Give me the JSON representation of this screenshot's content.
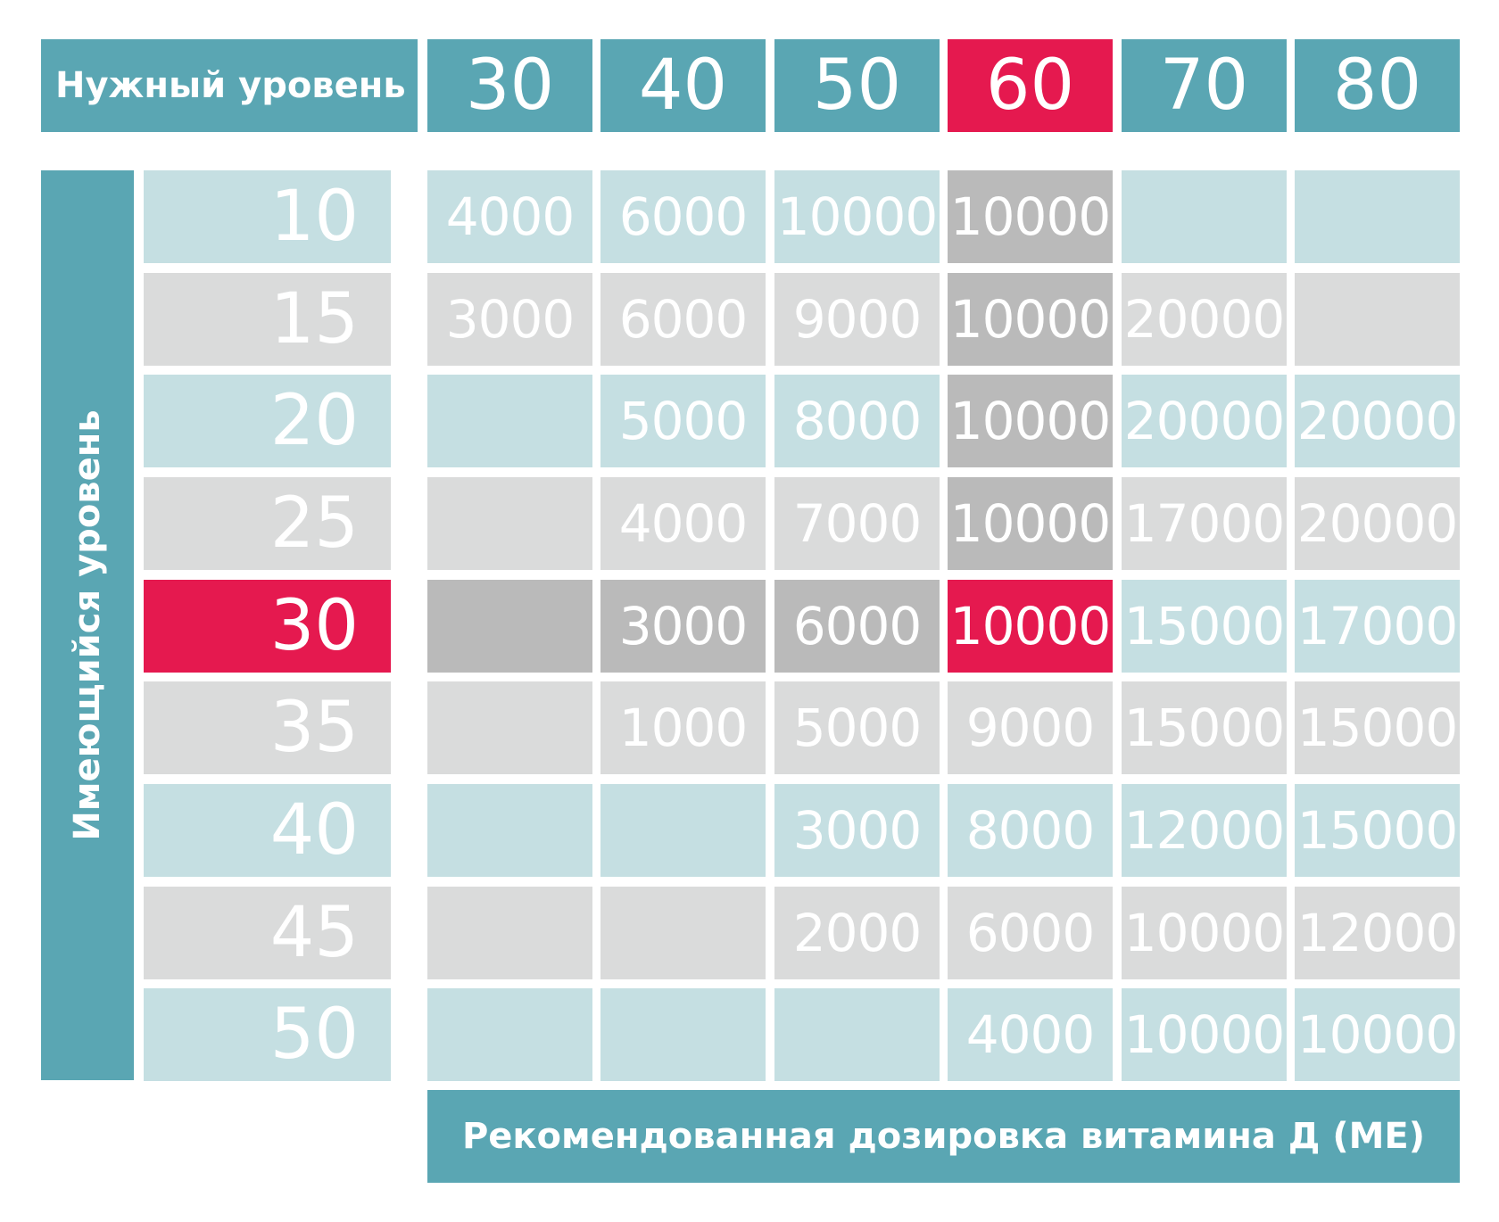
{
  "chart_data": {
    "type": "table",
    "header_label": "Нужный уровень",
    "row_axis_label": "Имеющийся уровень",
    "footer_label": "Рекомендованная дозировка витамина Д (МЕ)",
    "columns": [
      "30",
      "40",
      "50",
      "60",
      "70",
      "80"
    ],
    "rows": [
      "10",
      "15",
      "20",
      "25",
      "30",
      "35",
      "40",
      "45",
      "50"
    ],
    "cells": [
      [
        "4000",
        "6000",
        "10000",
        "10000",
        "",
        ""
      ],
      [
        "3000",
        "6000",
        "9000",
        "10000",
        "20000",
        ""
      ],
      [
        "",
        "5000",
        "8000",
        "10000",
        "20000",
        "20000"
      ],
      [
        "",
        "4000",
        "7000",
        "10000",
        "17000",
        "20000"
      ],
      [
        "",
        "3000",
        "6000",
        "10000",
        "15000",
        "17000"
      ],
      [
        "",
        "1000",
        "5000",
        "9000",
        "15000",
        "15000"
      ],
      [
        "",
        "",
        "3000",
        "8000",
        "12000",
        "15000"
      ],
      [
        "",
        "",
        "2000",
        "6000",
        "10000",
        "12000"
      ],
      [
        "",
        "",
        "",
        "4000",
        "10000",
        "10000"
      ]
    ],
    "highlight": {
      "column": "60",
      "row": "30"
    },
    "colors": {
      "teal": "#5aa6b3",
      "highlight_red": "#e5194f",
      "light_blue": "#c5dfe2",
      "light_gray": "#dadbdb",
      "dark_gray": "#bababa"
    }
  }
}
